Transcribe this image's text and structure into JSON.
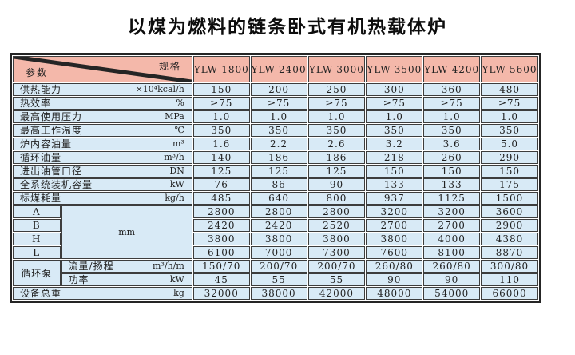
{
  "title": "以煤为燃料的链条卧式有机热载体炉",
  "colors": {
    "header_bg": "#f4b8aa",
    "row_bg": "#d8eaf6",
    "border": "#3d3d3d",
    "outer_border": "#252525",
    "text": "#222222"
  },
  "table": {
    "corner": {
      "spec_label": "规格",
      "param_label": "参数"
    },
    "models": [
      "YLW-1800",
      "YLW-2400",
      "YLW-3000",
      "YLW-3500",
      "YLW-4200",
      "YLW-5600"
    ],
    "param_rows": [
      {
        "label": "供热能力",
        "unit": "×10⁴kcal/h",
        "values": [
          "150",
          "200",
          "250",
          "300",
          "360",
          "480"
        ]
      },
      {
        "label": "热效率",
        "unit": "%",
        "values": [
          "≥75",
          "≥75",
          "≥75",
          "≥75",
          "≥75",
          "≥75"
        ]
      },
      {
        "label": "最高使用压力",
        "unit": "MPa",
        "values": [
          "1.0",
          "1.0",
          "1.0",
          "1.0",
          "1.0",
          "1.0"
        ]
      },
      {
        "label": "最高工作温度",
        "unit": "℃",
        "values": [
          "350",
          "350",
          "350",
          "350",
          "350",
          "350"
        ]
      },
      {
        "label": "炉内容油量",
        "unit": "m³",
        "values": [
          "1.6",
          "2.2",
          "2.6",
          "3.2",
          "3.6",
          "5.0"
        ]
      },
      {
        "label": "循环油量",
        "unit": "m³/h",
        "values": [
          "140",
          "186",
          "186",
          "218",
          "260",
          "290"
        ]
      },
      {
        "label": "进出油管口径",
        "unit": "DN",
        "values": [
          "125",
          "125",
          "125",
          "150",
          "150",
          "150"
        ]
      },
      {
        "label": "全系统装机容量",
        "unit": "kW",
        "values": [
          "76",
          "86",
          "90",
          "133",
          "133",
          "175"
        ]
      },
      {
        "label": "标煤耗量",
        "unit": "kg/h",
        "values": [
          "485",
          "640",
          "800",
          "937",
          "1125",
          "1500"
        ]
      }
    ],
    "dimension_group": {
      "unit": "mm",
      "rows": [
        {
          "label": "A",
          "values": [
            "2800",
            "2800",
            "2800",
            "3200",
            "3200",
            "3600"
          ]
        },
        {
          "label": "B",
          "values": [
            "2420",
            "2420",
            "2520",
            "2700",
            "2700",
            "2900"
          ]
        },
        {
          "label": "H",
          "values": [
            "3800",
            "3800",
            "3800",
            "3800",
            "4000",
            "4380"
          ]
        },
        {
          "label": "L",
          "values": [
            "6100",
            "7000",
            "7300",
            "7600",
            "8100",
            "8870"
          ]
        }
      ]
    },
    "pump_group": {
      "label": "循环泵",
      "rows": [
        {
          "label": "流量/扬程",
          "unit": "m³/h/m",
          "values": [
            "150/70",
            "200/70",
            "200/70",
            "260/80",
            "260/80",
            "300/80"
          ]
        },
        {
          "label": "功率",
          "unit": "kW",
          "values": [
            "45",
            "55",
            "55",
            "90",
            "90",
            "110"
          ]
        }
      ]
    },
    "total_row": {
      "label": "设备总重",
      "unit": "kg",
      "values": [
        "32000",
        "38000",
        "42000",
        "48000",
        "54000",
        "66000"
      ]
    }
  }
}
